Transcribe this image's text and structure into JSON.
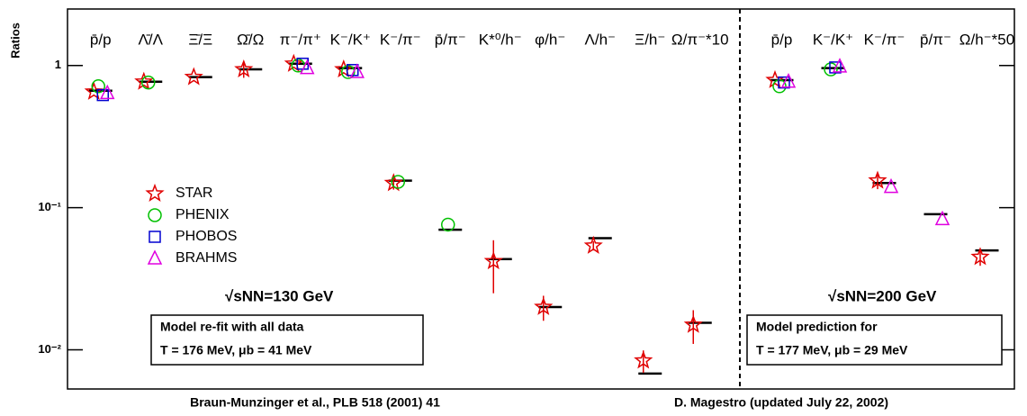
{
  "chart_data": [
    {
      "type": "scatter",
      "log_y": true,
      "ylabel": "Ratios",
      "ylim": [
        0.0053,
        2.5
      ],
      "yticks": [
        {
          "value": 0.01,
          "label": "10⁻²"
        },
        {
          "value": 0.1,
          "label": "10⁻¹"
        },
        1
      ],
      "categories": [
        "p̄/p",
        "Λ̄/Λ",
        "Ξ̄/Ξ",
        "Ω̄/Ω",
        "π⁻/π⁺",
        "K⁻/K⁺",
        "K⁻/π⁻",
        "p̄/π⁻",
        "K*⁰/h⁻",
        "φ/h⁻",
        "Λ/h⁻",
        "Ξ/h⁻",
        "Ω/π⁻*10"
      ],
      "model": {
        "color": "#000000",
        "values": [
          0.665,
          0.77,
          0.83,
          0.94,
          1.03,
          0.96,
          0.155,
          0.07,
          0.0435,
          0.02,
          0.061,
          0.0068,
          0.0155
        ]
      },
      "series": [
        {
          "name": "STAR",
          "color": "#e00000",
          "marker": "star",
          "values": [
            0.655,
            0.77,
            0.83,
            0.94,
            1.03,
            0.94,
            0.149,
            null,
            0.042,
            0.02,
            0.054,
            0.0084,
            0.015
          ],
          "errors": [
            null,
            null,
            null,
            0.12,
            null,
            null,
            0.015,
            null,
            0.017,
            0.004,
            0.004,
            0.0015,
            0.004
          ]
        },
        {
          "name": "PHENIX",
          "color": "#00c000",
          "marker": "circle",
          "values": [
            0.715,
            0.76,
            null,
            null,
            1.0,
            0.9,
            0.152,
            0.076,
            null,
            null,
            null,
            null,
            null
          ]
        },
        {
          "name": "PHOBOS",
          "color": "#0000d0",
          "marker": "square",
          "values": [
            0.62,
            null,
            null,
            null,
            1.03,
            0.93,
            null,
            null,
            null,
            null,
            null,
            null,
            null
          ]
        },
        {
          "name": "BRAHMS",
          "color": "#e000e0",
          "marker": "triangle",
          "values": [
            0.64,
            null,
            null,
            null,
            0.96,
            0.9,
            null,
            null,
            null,
            null,
            null,
            null,
            null
          ]
        }
      ],
      "energy_label": "√sNN=130 GeV",
      "box": [
        "Model re-fit with all data",
        "T = 176 MeV,    μb = 41 MeV"
      ],
      "footer": "Braun-Munzinger et al., PLB 518 (2001) 41"
    },
    {
      "type": "scatter",
      "log_y": true,
      "ylim": [
        0.0053,
        2.5
      ],
      "categories": [
        "p̄/p",
        "K⁻/K⁺",
        "K⁻/π⁻",
        "p̄/π⁻",
        "Ω/h⁻*50"
      ],
      "model": {
        "color": "#000000",
        "values": [
          0.79,
          0.96,
          0.149,
          0.09,
          0.05
        ]
      },
      "series": [
        {
          "color": "#e00000",
          "marker": "star",
          "values": [
            0.79,
            null,
            0.155,
            null,
            0.045
          ],
          "errors": [
            null,
            null,
            0.02,
            null,
            0.006
          ]
        },
        {
          "color": "#00c000",
          "marker": "circle",
          "values": [
            0.715,
            0.94,
            null,
            null,
            null
          ]
        },
        {
          "color": "#0000d0",
          "marker": "square",
          "values": [
            0.76,
            0.97,
            null,
            null,
            null
          ]
        },
        {
          "color": "#e000e0",
          "marker": "triangle",
          "values": [
            0.77,
            0.985,
            0.14,
            0.083,
            null
          ]
        }
      ],
      "energy_label": "√sNN=200 GeV",
      "box": [
        "Model prediction for",
        "T = 177 MeV,     μb = 29 MeV"
      ],
      "footer": "D. Magestro (updated July 22, 2002)"
    }
  ]
}
